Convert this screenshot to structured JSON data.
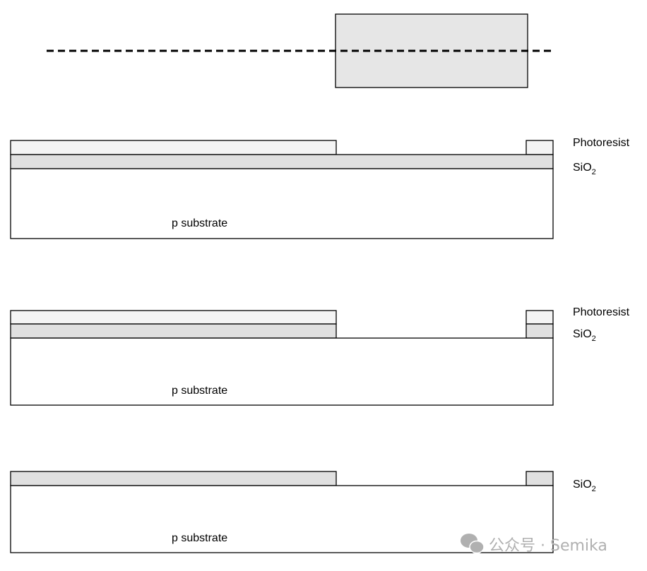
{
  "mask": {
    "fill": "#e6e6e6"
  },
  "colors": {
    "photoresist": "#f4f4f4",
    "sio2": "#e0e0e0",
    "substrate": "#ffffff",
    "outline": "#000000"
  },
  "labels": {
    "photoresist": "Photoresist",
    "sio2_main": "SiO",
    "sio2_sub": "2",
    "substrate": "p substrate"
  },
  "watermark": {
    "text": "公众号 · Semika",
    "icon": "wechat-icon"
  }
}
